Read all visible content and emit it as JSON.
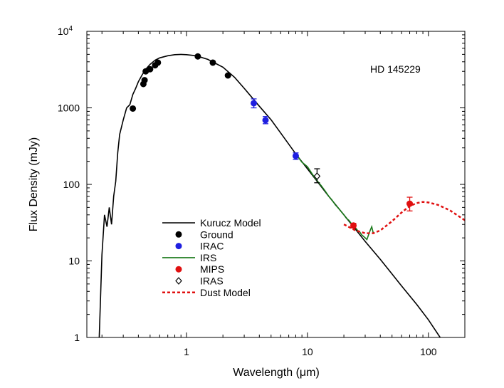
{
  "chart_data": {
    "type": "scatter",
    "title": "",
    "annotation": "HD 145229",
    "xlabel_prefix": "Wavelength (",
    "xlabel_unit": "μm",
    "xlabel_suffix": ")",
    "ylabel": "Flux Density (mJy)",
    "xscale": "log",
    "yscale": "log",
    "xlim": [
      0.15,
      200
    ],
    "ylim": [
      1,
      10000
    ],
    "grid": false,
    "legend_position": "lower-left",
    "x_ticks": [
      {
        "value": 1,
        "label": "1"
      },
      {
        "value": 10,
        "label": "10"
      },
      {
        "value": 100,
        "label": "100"
      }
    ],
    "y_ticks": [
      {
        "value": 1,
        "label": "1"
      },
      {
        "value": 10,
        "label": "10"
      },
      {
        "value": 100,
        "label": "100"
      },
      {
        "value": 1000,
        "label": "1000"
      }
    ],
    "y_top_tick": {
      "value": 10000,
      "base": "10",
      "exponent": "4"
    },
    "series": [
      {
        "name": "Kurucz Model",
        "kind": "line",
        "color": "#000000",
        "x": [
          0.19,
          0.2,
          0.21,
          0.22,
          0.23,
          0.24,
          0.25,
          0.26,
          0.27,
          0.28,
          0.3,
          0.32,
          0.34,
          0.36,
          0.38,
          0.4,
          0.43,
          0.46,
          0.5,
          0.55,
          0.6,
          0.7,
          0.8,
          0.9,
          1.0,
          1.2,
          1.5,
          2.0,
          2.5,
          3.0,
          4.0,
          5.0,
          6.0,
          8.0,
          10,
          15,
          20,
          30,
          40,
          60,
          80,
          100,
          125
        ],
        "y": [
          1.0,
          12,
          40,
          28,
          50,
          30,
          70,
          110,
          260,
          450,
          700,
          1000,
          1100,
          1500,
          1800,
          2200,
          2700,
          3200,
          3700,
          4200,
          4500,
          4800,
          4950,
          5000,
          4950,
          4800,
          4300,
          3400,
          2500,
          1800,
          1050,
          700,
          470,
          250,
          160,
          70,
          40,
          18,
          10.5,
          4.7,
          2.7,
          1.7,
          1.0
        ]
      },
      {
        "name": "Ground",
        "kind": "points",
        "color": "#000000",
        "points": [
          {
            "x": 0.36,
            "y": 980
          },
          {
            "x": 0.44,
            "y": 2050
          },
          {
            "x": 0.45,
            "y": 2300
          },
          {
            "x": 0.46,
            "y": 3000
          },
          {
            "x": 0.5,
            "y": 3200
          },
          {
            "x": 0.55,
            "y": 3600
          },
          {
            "x": 0.58,
            "y": 3900
          },
          {
            "x": 1.24,
            "y": 4700
          },
          {
            "x": 1.65,
            "y": 3900
          },
          {
            "x": 2.2,
            "y": 2650
          }
        ]
      },
      {
        "name": "IRAC",
        "kind": "points",
        "color": "#1f1fe0",
        "points": [
          {
            "x": 3.6,
            "y": 1150,
            "err_lo": 1000,
            "err_hi": 1310
          },
          {
            "x": 4.5,
            "y": 690,
            "err_lo": 620,
            "err_hi": 770
          },
          {
            "x": 8.0,
            "y": 235,
            "err_lo": 212,
            "err_hi": 258
          }
        ]
      },
      {
        "name": "IRS",
        "kind": "spectrum",
        "color": "#1a7a1a",
        "x": [
          8.0,
          9.0,
          10,
          11,
          12,
          13,
          14,
          15,
          16,
          17,
          18,
          19,
          20,
          21,
          22,
          23,
          24,
          25,
          26,
          27,
          28,
          29,
          30,
          31,
          32,
          33,
          34,
          35
        ],
        "y": [
          250,
          195,
          170,
          135,
          112,
          96,
          82,
          70,
          62,
          54,
          49,
          44,
          40,
          36,
          34,
          31,
          29,
          27,
          25,
          24,
          22,
          21,
          20,
          19,
          22,
          25,
          28,
          23
        ]
      },
      {
        "name": "MIPS",
        "kind": "points",
        "color": "#e01010",
        "points": [
          {
            "x": 24,
            "y": 29,
            "err_lo": 27,
            "err_hi": 31
          },
          {
            "x": 70,
            "y": 56,
            "err_lo": 45,
            "err_hi": 68
          }
        ]
      },
      {
        "name": "IRAS",
        "kind": "points",
        "color": "#000000",
        "marker": "open-diamond",
        "points": [
          {
            "x": 12,
            "y": 128,
            "err_lo": 105,
            "err_hi": 160
          }
        ]
      },
      {
        "name": "Dust Model",
        "kind": "dashed-line",
        "color": "#e01010",
        "x": [
          20,
          25,
          30,
          35,
          40,
          50,
          60,
          70,
          80,
          90,
          100,
          120,
          150,
          200
        ],
        "y": [
          30,
          25,
          23,
          23,
          25,
          33,
          43,
          52,
          57,
          59,
          58,
          54,
          46,
          34
        ]
      }
    ]
  }
}
